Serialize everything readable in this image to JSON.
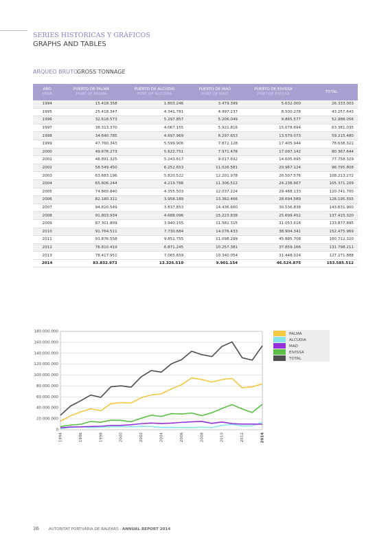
{
  "header": {
    "title": "SERIES HISTÓRICAS Y GRÁFICOS",
    "subtitle": "GRAPHS AND TABLES"
  },
  "section": {
    "title": "ARQUEO BRUTO",
    "subtitle": "GROSS TONNAGE"
  },
  "table": {
    "columns": [
      [
        "AÑO",
        "YEAR"
      ],
      [
        "PUERTO DE PALMA",
        "PORT OF PALMA"
      ],
      [
        "PUERTO DE ALCÚDIA",
        "PORT OF ALCÚDIA"
      ],
      [
        "PUERTO DE MAÓ",
        "PORT OF MAÓ"
      ],
      [
        "PUERTO DE EIVISSA",
        "PORT OF EIVISSA"
      ],
      [
        "TOTAL"
      ]
    ],
    "rows": [
      [
        "1994",
        "15.418.358",
        "1.803.246",
        "3.479.399",
        "5.632.000",
        "26.333.003"
      ],
      [
        "1995",
        "25.418.347",
        "4.341.781",
        "4.997.237",
        "8.500.278",
        "43.257.643"
      ],
      [
        "1996",
        "32.618.573",
        "5.297.857",
        "5.206.049",
        "9.865.577",
        "52.988.056"
      ],
      [
        "1997",
        "38.313.370",
        "4.067.155",
        "5.921.816",
        "15.078.694",
        "63.381.035"
      ],
      [
        "1998",
        "34.640.785",
        "4.697.969",
        "6.297.653",
        "13.579.073",
        "59.215.480"
      ],
      [
        "1999",
        "47.760.343",
        "5.599.906",
        "7.872.128",
        "17.405.944",
        "78.638.321"
      ],
      [
        "2000",
        "49.676.273",
        "5.622.751",
        "7.971.478",
        "17.097.142",
        "80.367.644"
      ],
      [
        "2001",
        "48.891.325",
        "5.243.617",
        "9.017.692",
        "14.605.695",
        "77.758.329"
      ],
      [
        "2002",
        "58.549.450",
        "6.252.653",
        "11.026.581",
        "20.967.124",
        "96.795.808"
      ],
      [
        "2003",
        "63.683.196",
        "5.820.522",
        "12.201.978",
        "26.507.576",
        "108.213.272"
      ],
      [
        "2004",
        "65.606.244",
        "4.219.786",
        "11.306.512",
        "24.238.667",
        "105.371.209"
      ],
      [
        "2005",
        "74.860.840",
        "4.355.503",
        "12.037.224",
        "29.488.133",
        "120.741.700"
      ],
      [
        "2006",
        "82.180.311",
        "3.958.189",
        "13.362.466",
        "28.694.589",
        "128.195.555"
      ],
      [
        "2007",
        "94.820.549",
        "3.837.853",
        "14.436.660",
        "30.536.838",
        "143.631.900"
      ],
      [
        "2008",
        "91.803.934",
        "4.688.096",
        "15.223.838",
        "25.699.452",
        "137.415.320"
      ],
      [
        "2009",
        "87.301.809",
        "3.940.155",
        "11.582.315",
        "31.053.616",
        "133.877.895"
      ],
      [
        "2010",
        "91.764.511",
        "7.730.684",
        "14.076.433",
        "38.904.341",
        "152.475.969"
      ],
      [
        "2011",
        "93.876.558",
        "9.851.755",
        "11.098.299",
        "45.885.708",
        "160.712.320"
      ],
      [
        "2012",
        "76.810.419",
        "6.871.245",
        "10.257.381",
        "37.859.166",
        "131.798.211"
      ],
      [
        "2013",
        "78.417.951",
        "7.065.659",
        "10.340.054",
        "31.448.024",
        "127.271.888"
      ],
      [
        "2014",
        "83.832.973",
        "13.326.510",
        "9.901.154",
        "46.524.875",
        "153.585.512"
      ]
    ]
  },
  "chart_data": {
    "type": "line",
    "categories": [
      "1994",
      null,
      "1996",
      null,
      "1998",
      null,
      "2000",
      null,
      "2002",
      null,
      "2004",
      null,
      "2006",
      null,
      "2008",
      null,
      "2010",
      null,
      "2012",
      null,
      "2014"
    ],
    "ylim": [
      0,
      180000000
    ],
    "yticks": [
      0,
      {
        "value": 20000000,
        "label": "20.000.000"
      },
      {
        "value": 40000000,
        "label": "40.000.000"
      },
      {
        "value": 60000000,
        "label": "60.000.000"
      },
      {
        "value": 80000000,
        "label": "80.000.000"
      },
      {
        "value": 100000000,
        "label": "100.000.000"
      },
      {
        "value": 120000000,
        "label": "120.000.000"
      },
      {
        "value": 140000000,
        "label": "140.000.000"
      },
      {
        "value": 160000000,
        "label": "160.000.000"
      },
      {
        "value": 180000000,
        "label": "180.000.000"
      }
    ],
    "grid": true,
    "series": [
      {
        "name": "PALMA",
        "color": "#f4c842",
        "values": [
          15418358,
          25418347,
          32618573,
          38313370,
          34640785,
          47760343,
          49676273,
          48891325,
          58549450,
          63683196,
          65606244,
          74860840,
          82180311,
          94820549,
          91803934,
          87301809,
          91764511,
          93876558,
          76810419,
          78417951,
          83832973
        ]
      },
      {
        "name": "ALCÚDIA",
        "color": "#86e4e8",
        "values": [
          1803246,
          4341781,
          5297857,
          4067155,
          4697969,
          5599906,
          5622751,
          5243617,
          6252653,
          5820522,
          4219786,
          4355503,
          3958189,
          3837853,
          4688096,
          3940155,
          7730684,
          9851755,
          6871245,
          7065659,
          13326510
        ]
      },
      {
        "name": "MAÓ",
        "color": "#9330d8",
        "values": [
          3479399,
          4997237,
          5206049,
          5921816,
          6297653,
          7872128,
          7971478,
          9017692,
          11026581,
          12201978,
          11306512,
          12037224,
          13362466,
          14436660,
          15223838,
          11582315,
          14076433,
          11098299,
          10257381,
          10340054,
          9901154
        ]
      },
      {
        "name": "EIVISSA",
        "color": "#5cbf45",
        "values": [
          5632000,
          8500278,
          9865577,
          15078694,
          13579073,
          17405944,
          17097142,
          14605695,
          20967124,
          26507576,
          24238667,
          29488133,
          28694589,
          30536838,
          25699452,
          31053616,
          38904341,
          45885708,
          37859166,
          31448024,
          46524875
        ]
      },
      {
        "name": "TOTAL",
        "color": "#4d4d4d",
        "values": [
          26333003,
          43257643,
          52988056,
          63381035,
          59215480,
          78638321,
          80367644,
          77758329,
          96795808,
          108213272,
          105371209,
          120741700,
          128195555,
          143631900,
          137415320,
          133877895,
          152475969,
          160712320,
          131798211,
          127271888,
          153585512
        ]
      }
    ]
  },
  "footer": {
    "page": "36",
    "org": "AUTORITAT PORTUÀRIA DE BALEARS",
    "report": "ANNUAL REPORT 2014"
  }
}
